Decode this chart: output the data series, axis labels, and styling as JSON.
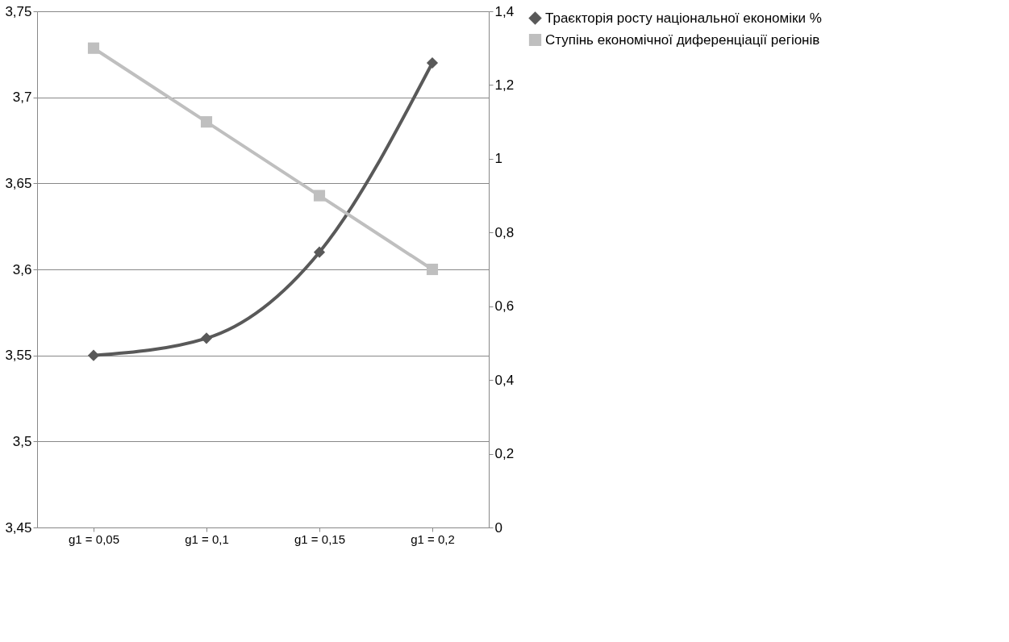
{
  "chart_data": {
    "type": "line",
    "categories": [
      "g1 = 0,05",
      "g1 = 0,1",
      "g1 = 0,15",
      "g1 = 0,2"
    ],
    "series": [
      {
        "name": "Траєкторія росту національної економіки %",
        "color": "#595959",
        "marker": "diamond",
        "values": [
          3.55,
          3.56,
          3.61,
          3.72
        ]
      },
      {
        "name": "Ступінь економічної диференціації регіонів",
        "color": "#bfbfbf",
        "marker": "square",
        "axis": "y2",
        "values": [
          1.3,
          1.1,
          0.9,
          0.7
        ]
      }
    ],
    "ylim": [
      3.45,
      3.75
    ],
    "yticks": [
      {
        "value": 3.45,
        "label": "3,45"
      },
      {
        "value": 3.5,
        "label": "3,5"
      },
      {
        "value": 3.55,
        "label": "3,55"
      },
      {
        "value": 3.6,
        "label": "3,6"
      },
      {
        "value": 3.65,
        "label": "3,65"
      },
      {
        "value": 3.7,
        "label": "3,7"
      },
      {
        "value": 3.75,
        "label": "3,75"
      }
    ],
    "y2lim": [
      0,
      1.4
    ],
    "y2ticks": [
      0,
      {
        "value": 0.2,
        "label": "0,2"
      },
      {
        "value": 0.4,
        "label": "0,4"
      },
      {
        "value": 0.6,
        "label": "0,6"
      },
      {
        "value": 0.8,
        "label": "0,8"
      },
      1,
      {
        "value": 1.2,
        "label": "1,2"
      },
      {
        "value": 1.4,
        "label": "1,4"
      }
    ],
    "grid": "y",
    "legend": "right"
  }
}
